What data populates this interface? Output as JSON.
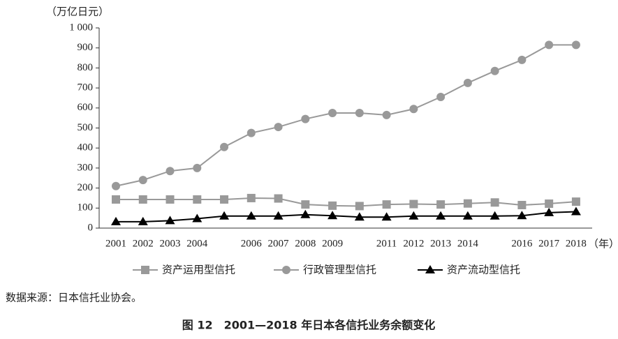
{
  "chart_data": {
    "type": "line",
    "y_label": "（万亿日元）",
    "x_label": "（年）",
    "categories": [
      "2001",
      "2002",
      "2003",
      "2004",
      null,
      "2006",
      "2007",
      "2008",
      "2009",
      null,
      "2011",
      "2012",
      "2013",
      "2014",
      null,
      "2016",
      "2017",
      "2018"
    ],
    "series": [
      {
        "name": "资产运用型信托",
        "color": "#999999",
        "marker": "square",
        "values": [
          143,
          143,
          143,
          143,
          143,
          150,
          148,
          118,
          112,
          110,
          118,
          120,
          118,
          123,
          128,
          115,
          122,
          132
        ]
      },
      {
        "name": "行政管理型信托",
        "color": "#999999",
        "marker": "circle",
        "values": [
          210,
          240,
          285,
          300,
          405,
          475,
          505,
          545,
          575,
          575,
          565,
          595,
          655,
          725,
          785,
          840,
          915,
          915
        ]
      },
      {
        "name": "资产流动型信托",
        "color": "#000000",
        "marker": "triangle",
        "values": [
          32,
          32,
          37,
          47,
          60,
          60,
          60,
          67,
          62,
          55,
          55,
          60,
          60,
          60,
          60,
          62,
          77,
          82
        ]
      }
    ],
    "ylim": [
      0,
      1000
    ],
    "yticks": [
      0,
      100,
      200,
      300,
      400,
      500,
      600,
      700,
      800,
      900,
      {
        "value": 1000,
        "label": "1 000"
      }
    ],
    "legend": "bottom",
    "source": "数据来源：日本信托业协会。",
    "title": "图 12　2001—2018 年日本各信托业务余额变化"
  }
}
